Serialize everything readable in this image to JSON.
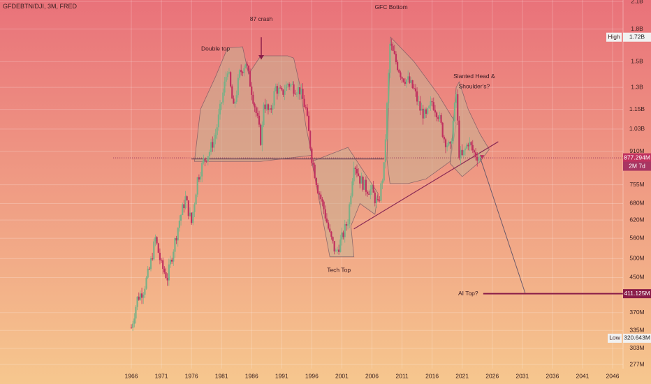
{
  "chart_data": {
    "type": "candlestick",
    "symbol": "GFDEBTN/DJI, 3M, FRED",
    "colors": {
      "bg_top": "#e9727a",
      "bg_bottom": "#f6c78e",
      "up": "#7ab087",
      "down": "#c0315f",
      "shape_fill": "#c9b092",
      "line": "#8a2a55",
      "current_label_bg": "#c0315f",
      "ai_label_bg": "#8a1c48",
      "low_bg": "#f1f1f1"
    },
    "x_axis": {
      "ticks": [
        "1966",
        "1971",
        "1976",
        "1981",
        "1986",
        "1991",
        "1996",
        "2001",
        "2006",
        "2011",
        "2016",
        "2021",
        "2026",
        "2031",
        "2036",
        "2041",
        "2046"
      ],
      "tick_years": [
        1966,
        1971,
        1976,
        1981,
        1986,
        1991,
        1996,
        2001,
        2006,
        2011,
        2016,
        2021,
        2026,
        2031,
        2036,
        2041,
        2046
      ]
    },
    "y_axis": {
      "scale": "log",
      "ticks": [
        "2.1B",
        "1.8B",
        "1.5B",
        "1.3B",
        "1.15B",
        "1.03B",
        "910M",
        "755M",
        "680M",
        "620M",
        "560M",
        "500M",
        "450M",
        "370M",
        "335M",
        "303M",
        "277M"
      ],
      "tick_values": [
        2100000000,
        1800000000,
        1500000000,
        1300000000,
        1150000000,
        1030000000,
        910000000,
        755000000,
        680000000,
        620000000,
        560000000,
        500000000,
        450000000,
        370000000,
        335000000,
        303000000,
        277000000
      ]
    },
    "markers": {
      "high": {
        "label": "High",
        "value_label": "1.72B",
        "value": 1720000000
      },
      "current": {
        "value_label": "877.294M",
        "sub_label": "2M 7d",
        "value": 877294000
      },
      "ai_top": {
        "value_label": "411.125M",
        "value": 411125000
      },
      "low": {
        "label": "Low",
        "value_label": "320.643M",
        "value": 320643000
      }
    },
    "series_path": [
      [
        1966.0,
        340000000
      ],
      [
        1967.0,
        400000000
      ],
      [
        1968.0,
        420000000
      ],
      [
        1969.0,
        470000000
      ],
      [
        1970.0,
        560000000
      ],
      [
        1971.0,
        480000000
      ],
      [
        1972.0,
        450000000
      ],
      [
        1973.0,
        530000000
      ],
      [
        1974.0,
        620000000
      ],
      [
        1975.0,
        700000000
      ],
      [
        1976.0,
        610000000
      ],
      [
        1977.0,
        780000000
      ],
      [
        1978.0,
        860000000
      ],
      [
        1979.0,
        910000000
      ],
      [
        1980.0,
        1000000000
      ],
      [
        1981.0,
        1200000000
      ],
      [
        1982.0,
        1450000000
      ],
      [
        1983.0,
        1150000000
      ],
      [
        1984.0,
        1400000000
      ],
      [
        1985.0,
        1500000000
      ],
      [
        1986.0,
        1280000000
      ],
      [
        1987.0,
        1080000000
      ],
      [
        1987.6,
        950000000
      ],
      [
        1988.0,
        1200000000
      ],
      [
        1989.0,
        1120000000
      ],
      [
        1990.0,
        1300000000
      ],
      [
        1991.0,
        1250000000
      ],
      [
        1992.0,
        1330000000
      ],
      [
        1993.0,
        1300000000
      ],
      [
        1994.0,
        1280000000
      ],
      [
        1995.0,
        1150000000
      ],
      [
        1996.0,
        880000000
      ],
      [
        1997.0,
        740000000
      ],
      [
        1998.0,
        660000000
      ],
      [
        1999.0,
        570000000
      ],
      [
        2000.0,
        515000000
      ],
      [
        2001.0,
        560000000
      ],
      [
        2002.0,
        620000000
      ],
      [
        2003.0,
        860000000
      ],
      [
        2004.0,
        780000000
      ],
      [
        2005.0,
        740000000
      ],
      [
        2006.0,
        730000000
      ],
      [
        2007.0,
        670000000
      ],
      [
        2008.0,
        830000000
      ],
      [
        2009.0,
        1650000000
      ],
      [
        2010.0,
        1500000000
      ],
      [
        2011.0,
        1380000000
      ],
      [
        2012.0,
        1350000000
      ],
      [
        2013.0,
        1280000000
      ],
      [
        2014.0,
        1150000000
      ],
      [
        2015.0,
        1100000000
      ],
      [
        2016.0,
        1200000000
      ],
      [
        2017.0,
        1120000000
      ],
      [
        2018.0,
        980000000
      ],
      [
        2019.0,
        920000000
      ],
      [
        2020.0,
        1250000000
      ],
      [
        2020.5,
        900000000
      ],
      [
        2021.0,
        880000000
      ],
      [
        2022.0,
        960000000
      ],
      [
        2023.0,
        900000000
      ],
      [
        2024.0,
        877294000
      ]
    ],
    "annotations": [
      {
        "text": "Double top",
        "year": 1980.0,
        "value": 1610000000
      },
      {
        "text": "87 crash",
        "year": 1987.6,
        "value": 1900000000
      },
      {
        "text": "GFC Bottom",
        "year": 2009.2,
        "value": 2030000000
      },
      {
        "text": "Slanted Head &",
        "year": 2023.0,
        "value": 1380000000
      },
      {
        "text": "Shoulder's?",
        "year": 2023.0,
        "value": 1305000000
      },
      {
        "text": "Tech Top",
        "year": 2000.5,
        "value": 468000000
      },
      {
        "text": "AI Top?",
        "year": 2022.0,
        "value": 411125000
      }
    ],
    "drawings": {
      "double_top_polygon": [
        [
          1976.5,
          860000000
        ],
        [
          1977.5,
          1150000000
        ],
        [
          1980.0,
          1380000000
        ],
        [
          1982.0,
          1620000000
        ],
        [
          1984.5,
          1630000000
        ],
        [
          1985.5,
          1400000000
        ],
        [
          1987.5,
          1550000000
        ],
        [
          1992.0,
          1550000000
        ],
        [
          1993.0,
          1530000000
        ],
        [
          1994.0,
          1320000000
        ],
        [
          1995.0,
          1050000000
        ],
        [
          1996.0,
          890000000
        ],
        [
          1987.5,
          860000000
        ],
        [
          1976.5,
          860000000
        ]
      ],
      "tech_top_polygon": [
        [
          1999.0,
          505000000
        ],
        [
          2003.0,
          505000000
        ],
        [
          2002.5,
          600000000
        ],
        [
          2004.0,
          680000000
        ],
        [
          2006.5,
          640000000
        ],
        [
          2007.0,
          720000000
        ],
        [
          2002.0,
          930000000
        ],
        [
          1996.0,
          860000000
        ]
      ],
      "gfc_polygon": [
        [
          2008.5,
          870000000
        ],
        [
          2009.1,
          1720000000
        ],
        [
          2013.0,
          1500000000
        ],
        [
          2017.0,
          1250000000
        ],
        [
          2020.0,
          1060000000
        ],
        [
          2019.0,
          860000000
        ],
        [
          2015.0,
          780000000
        ],
        [
          2012.0,
          760000000
        ],
        [
          2009.0,
          760000000
        ]
      ],
      "head_shoulders_polygon": [
        [
          2019.0,
          850000000
        ],
        [
          2020.0,
          1300000000
        ],
        [
          2020.5,
          1340000000
        ],
        [
          2022.0,
          1150000000
        ],
        [
          2024.0,
          1000000000
        ],
        [
          2025.5,
          920000000
        ],
        [
          2024.0,
          860000000
        ],
        [
          2021.0,
          790000000
        ]
      ],
      "neckline_1": [
        [
          1976.0,
          872000000
        ],
        [
          2008.0,
          872000000
        ]
      ],
      "neckline_2": [
        [
          2003.0,
          590000000
        ],
        [
          2027.0,
          960000000
        ]
      ],
      "projection": [
        [
          2024.0,
          877294000
        ],
        [
          2031.5,
          411125000
        ]
      ],
      "ai_line": [
        [
          2024.5,
          411125000
        ],
        [
          2033.0,
          411125000
        ]
      ],
      "current_line": [
        [
          1963.0,
          877294000
        ],
        [
          2048.0,
          877294000
        ]
      ],
      "arrow_87": {
        "year": 1987.6,
        "top": 1720000000,
        "bottom": 1520000000
      },
      "head_shoulders_tip": {
        "year": 2024.3,
        "value": 877294000
      }
    }
  }
}
